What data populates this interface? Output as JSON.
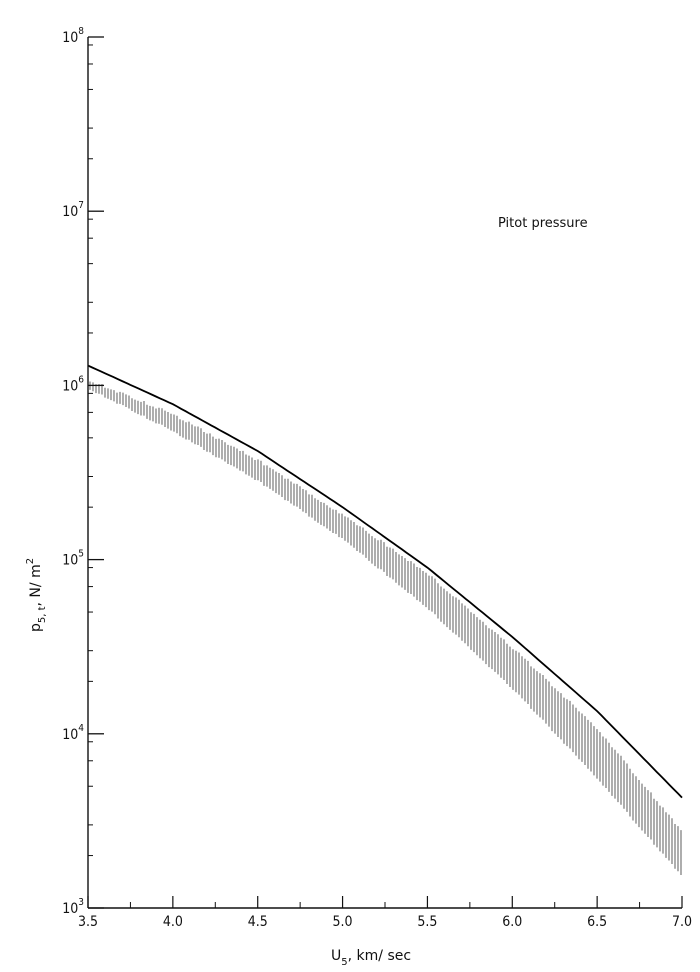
{
  "chart_data": {
    "type": "line",
    "title": "",
    "annotation": "Pitot pressure",
    "xlabel": {
      "base": "U",
      "sub": "5",
      "rest": ", km/ sec"
    },
    "ylabel": {
      "base": "p",
      "sub": "5, t",
      "rest": ", N/ m",
      "sup": "2"
    },
    "xlim": [
      3.5,
      7.0
    ],
    "ylim": [
      1000,
      100000000
    ],
    "yscale": "log",
    "grid": false,
    "xticks": [
      "3.5",
      "4.0",
      "4.5",
      "5.0",
      "5.5",
      "6.0",
      "6.5",
      "7.0"
    ],
    "xtick_values": [
      3.5,
      4.0,
      4.5,
      5.0,
      5.5,
      6.0,
      6.5,
      7.0
    ],
    "yticks": [
      {
        "base": "10",
        "exp": "3",
        "value": 1000
      },
      {
        "base": "10",
        "exp": "4",
        "value": 10000
      },
      {
        "base": "10",
        "exp": "5",
        "value": 100000
      },
      {
        "base": "10",
        "exp": "6",
        "value": 1000000
      },
      {
        "base": "10",
        "exp": "7",
        "value": 10000000
      },
      {
        "base": "10",
        "exp": "8",
        "value": 100000000
      }
    ],
    "series": [
      {
        "style": "solid-line",
        "x": [
          3.5,
          4.0,
          4.5,
          5.0,
          5.5,
          6.0,
          6.5,
          7.0
        ],
        "y": [
          1300000,
          780000,
          420000,
          200000,
          90000,
          36000,
          13500,
          4300
        ]
      },
      {
        "style": "hatched-band",
        "x": [
          3.5,
          4.0,
          4.5,
          5.0,
          5.5,
          6.0,
          6.5,
          7.0
        ],
        "y_upper": [
          1100000,
          700000,
          380000,
          185000,
          85000,
          32000,
          11000,
          2800
        ],
        "y_lower": [
          950000,
          540000,
          280000,
          130000,
          52000,
          18000,
          5500,
          1500
        ]
      }
    ]
  }
}
